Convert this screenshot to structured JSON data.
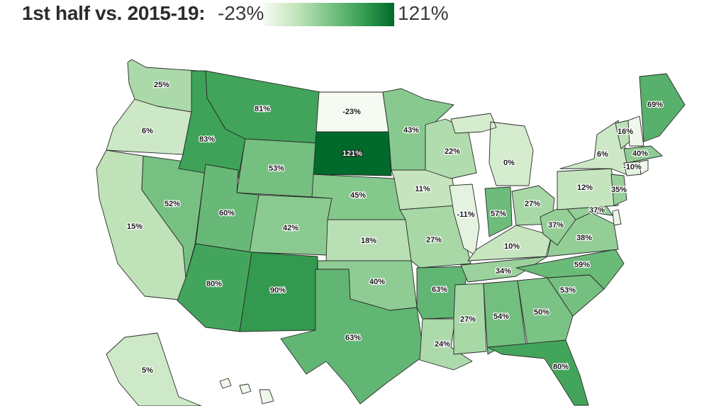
{
  "header": {
    "title": "1st half vs. 2015-19:",
    "legend_min": "-23%",
    "legend_max": "121%"
  },
  "scale": {
    "min": -23,
    "max": 121,
    "colors": [
      "#f5fbf2",
      "#c3e4bb",
      "#7cc486",
      "#3aa055",
      "#006a2c"
    ]
  },
  "states": [
    {
      "id": "WA",
      "value": 25,
      "label": "25%"
    },
    {
      "id": "OR",
      "value": 6,
      "label": "6%"
    },
    {
      "id": "CA",
      "value": 15,
      "label": "15%"
    },
    {
      "id": "NV",
      "value": 52,
      "label": "52%"
    },
    {
      "id": "ID",
      "value": 83,
      "label": "83%"
    },
    {
      "id": "MT",
      "value": 81,
      "label": "81%"
    },
    {
      "id": "WY",
      "value": 53,
      "label": "53%"
    },
    {
      "id": "UT",
      "value": 60,
      "label": "60%"
    },
    {
      "id": "AZ",
      "value": 80,
      "label": "80%"
    },
    {
      "id": "CO",
      "value": 42,
      "label": "42%"
    },
    {
      "id": "NM",
      "value": 90,
      "label": "90%"
    },
    {
      "id": "ND",
      "value": -23,
      "label": "-23%"
    },
    {
      "id": "SD",
      "value": 121,
      "label": "121%"
    },
    {
      "id": "NE",
      "value": 45,
      "label": "45%"
    },
    {
      "id": "KS",
      "value": 18,
      "label": "18%"
    },
    {
      "id": "OK",
      "value": 40,
      "label": "40%"
    },
    {
      "id": "TX",
      "value": 63,
      "label": "63%"
    },
    {
      "id": "MN",
      "value": 43,
      "label": "43%"
    },
    {
      "id": "IA",
      "value": 11,
      "label": "11%"
    },
    {
      "id": "MO",
      "value": 27,
      "label": "27%"
    },
    {
      "id": "AR",
      "value": 63,
      "label": "63%"
    },
    {
      "id": "LA",
      "value": 24,
      "label": "24%"
    },
    {
      "id": "WI",
      "value": 22,
      "label": "22%"
    },
    {
      "id": "IL",
      "value": -11,
      "label": "-11%"
    },
    {
      "id": "MI",
      "value": 0,
      "label": "0%"
    },
    {
      "id": "IN",
      "value": 57,
      "label": "57%"
    },
    {
      "id": "OH",
      "value": 27,
      "label": "27%"
    },
    {
      "id": "KY",
      "value": 10,
      "label": "10%"
    },
    {
      "id": "TN",
      "value": 34,
      "label": "34%"
    },
    {
      "id": "MS",
      "value": 27,
      "label": "27%"
    },
    {
      "id": "AL",
      "value": 54,
      "label": "54%"
    },
    {
      "id": "GA",
      "value": 50,
      "label": "50%"
    },
    {
      "id": "FL",
      "value": 80,
      "label": "80%"
    },
    {
      "id": "SC",
      "value": 53,
      "label": "53%"
    },
    {
      "id": "NC",
      "value": 59,
      "label": "59%"
    },
    {
      "id": "VA",
      "value": 38,
      "label": "38%"
    },
    {
      "id": "WV",
      "value": 37,
      "label": "37%"
    },
    {
      "id": "MD",
      "value": 37,
      "label": "37%"
    },
    {
      "id": "PA",
      "value": 12,
      "label": "12%"
    },
    {
      "id": "NJ",
      "value": 35,
      "label": "35%"
    },
    {
      "id": "NY",
      "value": 6,
      "label": "6%"
    },
    {
      "id": "VT",
      "value": 16,
      "label": "16%"
    },
    {
      "id": "NH",
      "value": null,
      "label": ""
    },
    {
      "id": "ME",
      "value": 69,
      "label": "69%"
    },
    {
      "id": "MA",
      "value": 40,
      "label": "40%"
    },
    {
      "id": "CT",
      "value": -10,
      "label": "-10%"
    },
    {
      "id": "RI",
      "value": null,
      "label": ""
    },
    {
      "id": "DE",
      "value": null,
      "label": ""
    },
    {
      "id": "AK",
      "value": 5,
      "label": "5%"
    },
    {
      "id": "HI",
      "value": null,
      "label": ""
    }
  ]
}
